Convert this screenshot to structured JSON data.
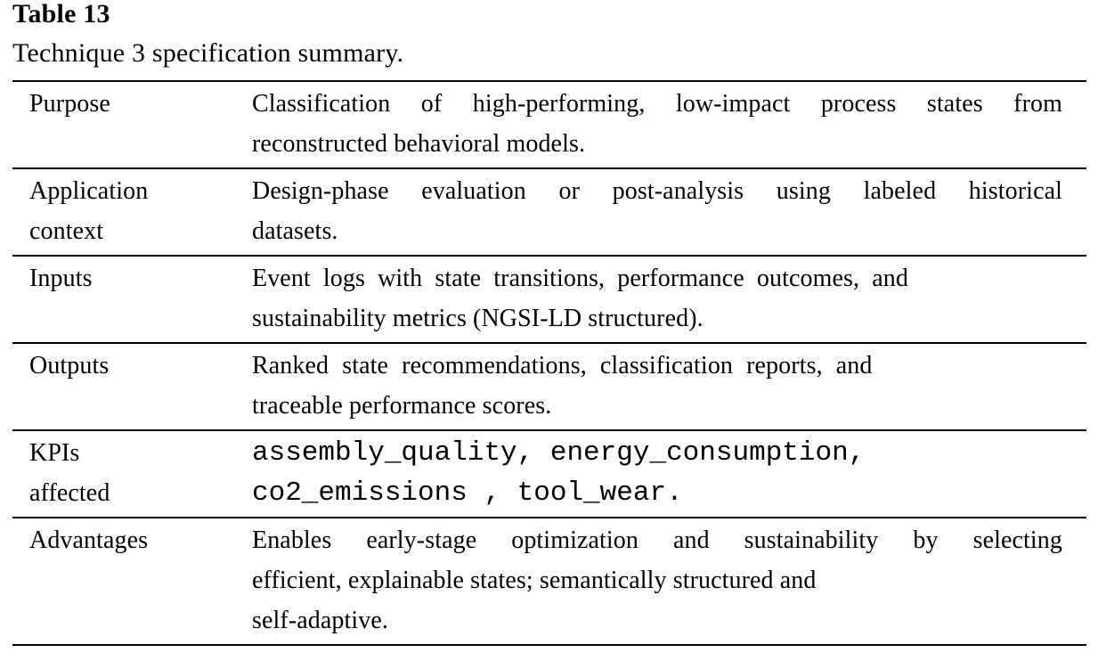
{
  "caption": {
    "label": "Table 13",
    "title": "Technique 3 specification summary."
  },
  "table": {
    "rows": [
      {
        "label_lines": [
          "Purpose"
        ],
        "value_lines": [
          "Classification of high-performing, low-impact process states from",
          "reconstructed behavioral models."
        ]
      },
      {
        "label_lines": [
          "Application",
          "context"
        ],
        "value_lines": [
          "Design-phase evaluation or post-analysis using labeled historical",
          "datasets."
        ]
      },
      {
        "label_lines": [
          "Inputs"
        ],
        "value_lines": [
          "Event logs with state transitions, performance outcomes, and",
          "sustainability metrics (NGSI-LD structured)."
        ]
      },
      {
        "label_lines": [
          "Outputs"
        ],
        "value_lines": [
          "Ranked state recommendations, classification reports, and",
          "traceable performance scores."
        ]
      },
      {
        "label_lines": [
          "KPIs",
          "affected"
        ],
        "value_lines": [
          "assembly_quality, energy_consumption,",
          "co2_emissions , tool_wear."
        ]
      },
      {
        "label_lines": [
          "Advantages"
        ],
        "value_lines": [
          "Enables early-stage optimization and sustainability by selecting",
          "efficient, explainable states; semantically structured and",
          "self-adaptive."
        ]
      }
    ]
  },
  "colors": {
    "background": "#ffffff",
    "text": "#000000",
    "rule": "#000000"
  }
}
